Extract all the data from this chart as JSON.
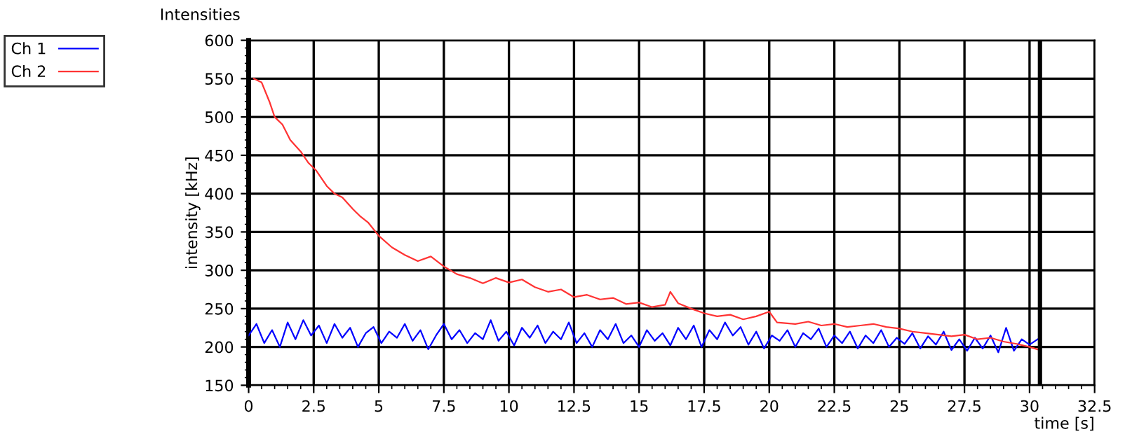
{
  "chart_data": {
    "type": "line",
    "title": "Intensities",
    "xlabel": "time [s]",
    "ylabel": "intensity [kHz]",
    "xlim": [
      0,
      32.5
    ],
    "xticks": [
      0,
      2.5,
      5,
      7.5,
      10,
      12.5,
      15,
      17.5,
      20,
      22.5,
      25,
      27.5,
      30,
      32.5
    ],
    "ylim": [
      150,
      600
    ],
    "yticks": [
      150,
      200,
      250,
      300,
      350,
      400,
      450,
      500,
      550,
      600
    ],
    "grid": true,
    "legend": "top left",
    "line_style": "solid",
    "marker": "none",
    "ref_lines": [
      {
        "axis": "x",
        "value": 30.4,
        "color": "#000000"
      }
    ],
    "series": [
      {
        "name": "Ch 1",
        "color": "#0000ff",
        "x": [
          0,
          0.3,
          0.6,
          0.9,
          1.2,
          1.5,
          1.8,
          2.1,
          2.4,
          2.7,
          3.0,
          3.3,
          3.6,
          3.9,
          4.2,
          4.5,
          4.8,
          5.1,
          5.4,
          5.7,
          6.0,
          6.3,
          6.6,
          6.9,
          7.2,
          7.5,
          7.8,
          8.1,
          8.4,
          8.7,
          9.0,
          9.3,
          9.6,
          9.9,
          10.2,
          10.5,
          10.8,
          11.1,
          11.4,
          11.7,
          12.0,
          12.3,
          12.6,
          12.9,
          13.2,
          13.5,
          13.8,
          14.1,
          14.4,
          14.7,
          15.0,
          15.3,
          15.6,
          15.9,
          16.2,
          16.5,
          16.8,
          17.1,
          17.4,
          17.7,
          18.0,
          18.3,
          18.6,
          18.9,
          19.2,
          19.5,
          19.8,
          20.1,
          20.4,
          20.7,
          21.0,
          21.3,
          21.6,
          21.9,
          22.2,
          22.5,
          22.8,
          23.1,
          23.4,
          23.7,
          24.0,
          24.3,
          24.6,
          24.9,
          25.2,
          25.5,
          25.8,
          26.1,
          26.4,
          26.7,
          27.0,
          27.3,
          27.6,
          27.9,
          28.2,
          28.5,
          28.8,
          29.1,
          29.4,
          29.7,
          30.0,
          30.4
        ],
        "values": [
          215,
          230,
          205,
          222,
          200,
          232,
          210,
          235,
          215,
          228,
          205,
          230,
          212,
          225,
          200,
          218,
          226,
          205,
          220,
          212,
          230,
          208,
          222,
          197,
          215,
          230,
          210,
          222,
          205,
          218,
          210,
          235,
          208,
          220,
          202,
          225,
          212,
          228,
          205,
          220,
          210,
          232,
          205,
          218,
          200,
          222,
          210,
          230,
          205,
          215,
          200,
          222,
          208,
          218,
          202,
          225,
          210,
          228,
          200,
          222,
          210,
          232,
          215,
          226,
          203,
          220,
          198,
          215,
          208,
          222,
          200,
          218,
          210,
          224,
          200,
          215,
          205,
          220,
          198,
          215,
          205,
          222,
          200,
          212,
          204,
          218,
          198,
          214,
          203,
          220,
          196,
          210,
          195,
          212,
          198,
          215,
          193,
          225,
          195,
          210,
          203,
          212
        ]
      },
      {
        "name": "Ch 2",
        "color": "#ff3333",
        "x": [
          0.2,
          0.5,
          0.8,
          1.0,
          1.3,
          1.6,
          2.0,
          2.3,
          2.6,
          3.0,
          3.3,
          3.6,
          4.0,
          4.3,
          4.6,
          5.0,
          5.5,
          6.0,
          6.5,
          7.0,
          7.5,
          8.0,
          8.5,
          9.0,
          9.5,
          10.0,
          10.5,
          11.0,
          11.5,
          12.0,
          12.5,
          13.0,
          13.5,
          14.0,
          14.5,
          15.0,
          15.5,
          16.0,
          16.2,
          16.5,
          17.0,
          17.5,
          18.0,
          18.5,
          19.0,
          19.5,
          20.0,
          20.3,
          21.0,
          21.5,
          22.0,
          22.5,
          23.0,
          23.5,
          24.0,
          24.5,
          25.0,
          25.5,
          26.0,
          26.5,
          27.0,
          27.5,
          28.0,
          28.5,
          29.0,
          29.5,
          30.0,
          30.4
        ],
        "values": [
          550,
          545,
          520,
          500,
          490,
          470,
          455,
          440,
          430,
          410,
          400,
          395,
          380,
          370,
          362,
          345,
          330,
          320,
          312,
          318,
          305,
          295,
          290,
          283,
          290,
          284,
          288,
          278,
          272,
          275,
          265,
          268,
          262,
          264,
          256,
          258,
          252,
          255,
          272,
          257,
          250,
          244,
          240,
          242,
          236,
          240,
          246,
          232,
          230,
          233,
          228,
          230,
          226,
          228,
          230,
          226,
          224,
          220,
          218,
          216,
          214,
          216,
          210,
          212,
          207,
          204,
          200,
          196
        ]
      }
    ]
  }
}
